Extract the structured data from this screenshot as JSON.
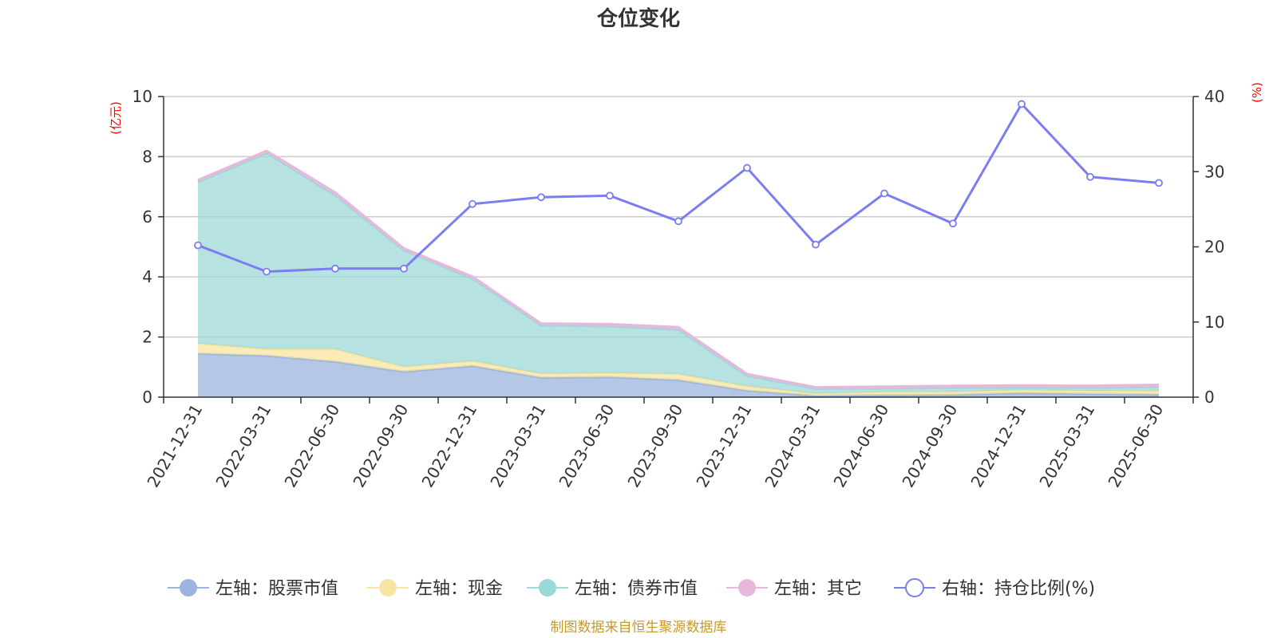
{
  "chart_data": {
    "type": "area",
    "title": "仓位变化",
    "categories": [
      "2021-12-31",
      "2022-03-31",
      "2022-06-30",
      "2022-09-30",
      "2022-12-31",
      "2023-03-31",
      "2023-06-30",
      "2023-09-30",
      "2023-12-31",
      "2024-03-31",
      "2024-06-30",
      "2024-09-30",
      "2024-12-31",
      "2025-03-31",
      "2025-06-30"
    ],
    "left_axis": {
      "unit": "(亿元)",
      "ylim": [
        0,
        10
      ],
      "ticks": [
        "0",
        "2",
        "4",
        "6",
        "8",
        "10"
      ]
    },
    "right_axis": {
      "unit": "(%)",
      "ylim": [
        0,
        40
      ],
      "ticks": [
        "0",
        "10",
        "20",
        "30",
        "40"
      ]
    },
    "series": [
      {
        "name": "左轴：股票市值",
        "type": "area",
        "axis": "left",
        "color": "#9bb5de",
        "values": [
          1.45,
          1.38,
          1.18,
          0.85,
          1.04,
          0.65,
          0.67,
          0.57,
          0.22,
          0.05,
          0.07,
          0.08,
          0.14,
          0.11,
          0.09
        ]
      },
      {
        "name": "左轴：现金",
        "type": "area",
        "axis": "left",
        "color": "#f7e5a0",
        "values": [
          0.33,
          0.22,
          0.42,
          0.16,
          0.16,
          0.13,
          0.13,
          0.2,
          0.14,
          0.07,
          0.1,
          0.1,
          0.1,
          0.1,
          0.12
        ]
      },
      {
        "name": "左轴：债券市值",
        "type": "area",
        "axis": "left",
        "color": "#9dd8d8",
        "values": [
          5.37,
          6.52,
          5.12,
          3.87,
          2.75,
          1.61,
          1.56,
          1.48,
          0.35,
          0.16,
          0.12,
          0.13,
          0.08,
          0.1,
          0.13
        ]
      },
      {
        "name": "左轴：其它",
        "type": "area",
        "axis": "left",
        "color": "#e8b8dc",
        "values": [
          0.07,
          0.07,
          0.09,
          0.07,
          0.06,
          0.06,
          0.07,
          0.08,
          0.06,
          0.05,
          0.06,
          0.07,
          0.07,
          0.07,
          0.07
        ]
      },
      {
        "name": "右轴：持仓比例(%)",
        "type": "line",
        "axis": "right",
        "color": "#7b7ef0",
        "values": [
          20.2,
          16.7,
          17.1,
          17.1,
          25.7,
          26.6,
          26.8,
          23.4,
          30.5,
          20.3,
          27.1,
          23.1,
          39.0,
          29.3,
          28.5
        ]
      }
    ],
    "legend_position": "bottom",
    "grid": true,
    "source": "制图数据来自恒生聚源数据库"
  }
}
